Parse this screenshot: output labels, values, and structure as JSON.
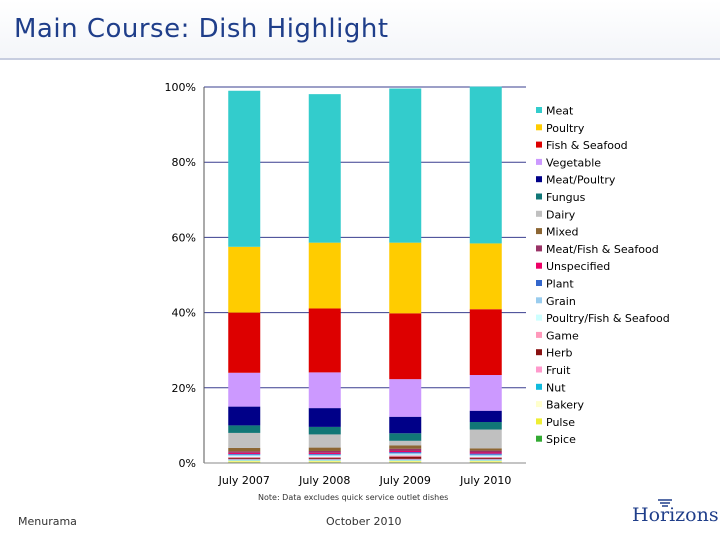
{
  "page": {
    "title": "Main Course: Dish Highlight",
    "note": "Note: Data excludes quick service outlet dishes",
    "footer_left": "Menurama",
    "footer_center": "October 2010",
    "logo": "Horizons"
  },
  "chart_data": {
    "type": "bar",
    "stacked": true,
    "percent": true,
    "categories": [
      "July 2007",
      "July 2008",
      "July 2009",
      "July 2010"
    ],
    "yticks": [
      "0%",
      "20%",
      "40%",
      "60%",
      "80%",
      "100%"
    ],
    "ylim": [
      0,
      100
    ],
    "grid": true,
    "legend_position": "right",
    "series": [
      {
        "name": "Spice",
        "color": "#33aa33",
        "values": [
          0.2,
          0.2,
          0.2,
          0.2
        ]
      },
      {
        "name": "Pulse",
        "color": "#eeee33",
        "values": [
          0.2,
          0.2,
          0.2,
          0.2
        ]
      },
      {
        "name": "Bakery",
        "color": "#ffffcc",
        "values": [
          0.3,
          0.3,
          0.3,
          0.3
        ]
      },
      {
        "name": "Nut",
        "color": "#11bbdd",
        "values": [
          0.2,
          0.2,
          0.2,
          0.2
        ]
      },
      {
        "name": "Fruit",
        "color": "#ff99cc",
        "values": [
          0.2,
          0.2,
          0.2,
          0.2
        ]
      },
      {
        "name": "Herb",
        "color": "#881111",
        "values": [
          0.3,
          0.3,
          0.6,
          0.3
        ]
      },
      {
        "name": "Game",
        "color": "#ff99bb",
        "values": [
          0.2,
          0.2,
          0.3,
          0.2
        ]
      },
      {
        "name": "Poultry/Fish & Seafood",
        "color": "#ccffff",
        "values": [
          0.3,
          0.3,
          0.3,
          0.3
        ]
      },
      {
        "name": "Grain",
        "color": "#99ccee",
        "values": [
          0.3,
          0.3,
          0.3,
          0.3
        ]
      },
      {
        "name": "Plant",
        "color": "#3366cc",
        "values": [
          0.2,
          0.2,
          0.3,
          0.3
        ]
      },
      {
        "name": "Unspecified",
        "color": "#ee0066",
        "values": [
          0.3,
          0.3,
          0.3,
          0.3
        ]
      },
      {
        "name": "Meat/Fish & Seafood",
        "color": "#993366",
        "values": [
          0.4,
          0.5,
          0.6,
          0.5
        ]
      },
      {
        "name": "Mixed",
        "color": "#8c6633",
        "values": [
          0.9,
          0.9,
          0.9,
          0.6
        ]
      },
      {
        "name": "Dairy",
        "color": "#c0c0c0",
        "values": [
          4.0,
          3.5,
          1.2,
          5.0
        ]
      },
      {
        "name": "Fungus",
        "color": "#117777",
        "values": [
          2.0,
          2.0,
          2.0,
          2.0
        ]
      },
      {
        "name": "Meat/Poultry",
        "color": "#000088",
        "values": [
          5.0,
          5.0,
          4.4,
          3.0
        ]
      },
      {
        "name": "Vegetable",
        "color": "#cc99ff",
        "values": [
          9.0,
          9.5,
          10.0,
          9.5
        ]
      },
      {
        "name": "Fish & Seafood",
        "color": "#dd0000",
        "values": [
          16.0,
          17.0,
          17.5,
          17.5
        ]
      },
      {
        "name": "Poultry",
        "color": "#ffcc00",
        "values": [
          17.5,
          17.5,
          18.8,
          17.5
        ]
      },
      {
        "name": "Meat",
        "color": "#33cccc",
        "values": [
          41.5,
          39.5,
          41.0,
          41.7
        ]
      }
    ]
  }
}
